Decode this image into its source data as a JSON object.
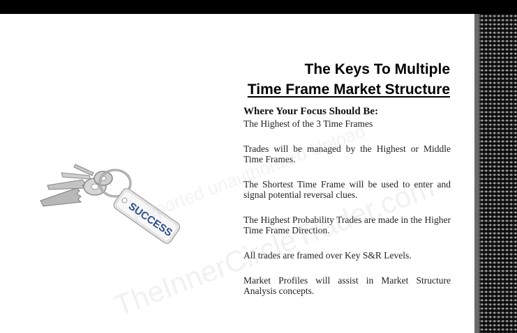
{
  "slide": {
    "title_line1": "The Keys To Multiple",
    "title_line2": "Time Frame Market Structure",
    "focus_heading": "Where Your Focus Should Be:",
    "focus_sub": "The Highest of the 3 Time Frames",
    "paragraphs": [
      "Trades will be managed by the Highest or Middle Time Frames.",
      "The Shortest Time Frame will be used to enter and signal potential reversal clues.",
      "The Highest Probability Trades are made in the Higher Time Frame Direction.",
      "All trades are framed over Key S&R Levels.",
      "Market Profiles will assist in Market Structure Analysis concepts."
    ],
    "key_tag_text": "SUCCESS"
  },
  "watermark": {
    "line1": "TheInnerCircleTrader.com",
    "line2": "Reported unauthorized Upload"
  }
}
